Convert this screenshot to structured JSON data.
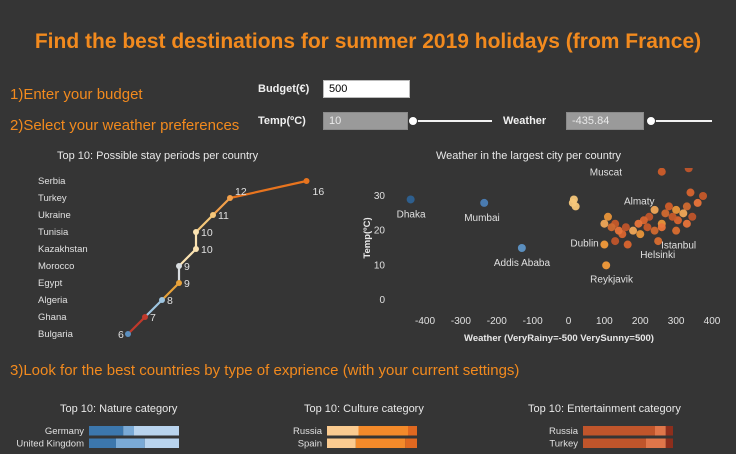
{
  "title": "Find the best destinations for summer 2019 holidays (from France)",
  "steps": {
    "budget": "1)Enter your budget",
    "weather": "2)Select your weather preferences",
    "category": "3)Look for the best countries by type of exprience (with your current settings)"
  },
  "controls": {
    "budget_label": "Budget(€)",
    "budget_value": "500",
    "temp_label": "Temp(ºC)",
    "temp_value": "10",
    "temp_fraction": 0.0,
    "weather_label": "Weather",
    "weather_value": "-435.84",
    "weather_fraction": 0.0
  },
  "chart_data": [
    {
      "type": "line",
      "title": "Top 10: Possible stay periods per country",
      "categories": [
        "Serbia",
        "Turkey",
        "Ukraine",
        "Tunisia",
        "Kazakhstan",
        "Morocco",
        "Egypt",
        "Algeria",
        "Ghana",
        "Bulgaria"
      ],
      "values": [
        16,
        12,
        11,
        10,
        10,
        9,
        9,
        8,
        7,
        6
      ],
      "value_labels": [
        "16",
        "12",
        "11",
        "10",
        "10",
        "9",
        "9",
        "8",
        "7",
        "6"
      ],
      "colors": [
        "#e8741e",
        "#f2a04a",
        "#f5c77a",
        "#fbe3b2",
        "#fbe3b2",
        "#d9dde0",
        "#e8a23a",
        "#9ec5e0",
        "#c0392b",
        "#5b8fbf"
      ]
    },
    {
      "type": "scatter",
      "title": "Weather in the largest city per country",
      "xlabel": "Weather (VeryRainy=-500  VerySunny=500)",
      "ylabel": "Temp(ºC)",
      "xlim": [
        -450,
        400
      ],
      "ylim": [
        -3,
        35
      ],
      "xticks": [
        "-400",
        "-300",
        "-200",
        "-100",
        "0",
        "100",
        "200",
        "300",
        "400"
      ],
      "yticks": [
        "30",
        "20",
        "10",
        "0"
      ],
      "labelled_points": [
        {
          "label": "Dhaka",
          "x": -440,
          "y": 29,
          "color": "#2e5f8e"
        },
        {
          "label": "Mumbai",
          "x": -235,
          "y": 28,
          "color": "#4a7bb0"
        },
        {
          "label": "Addis Ababa",
          "x": -130,
          "y": 15,
          "color": "#5b8fbf"
        },
        {
          "label": "Muscat",
          "x": 260,
          "y": 37,
          "color": "#c65a2a"
        },
        {
          "label": "Almaty",
          "x": 280,
          "y": 27,
          "color": "#c65a2a"
        },
        {
          "label": "Istanbul",
          "x": 300,
          "y": 20,
          "color": "#d06a30"
        },
        {
          "label": "Helsinki",
          "x": 250,
          "y": 17,
          "color": "#d06a30"
        },
        {
          "label": "Dublin",
          "x": 100,
          "y": 16,
          "color": "#e8953a"
        },
        {
          "label": "Reykjavik",
          "x": 105,
          "y": 10,
          "color": "#e8953a"
        }
      ],
      "points": [
        {
          "x": 335,
          "y": 38
        },
        {
          "x": 340,
          "y": 31
        },
        {
          "x": 360,
          "y": 28
        },
        {
          "x": 375,
          "y": 30
        },
        {
          "x": 330,
          "y": 27
        },
        {
          "x": 300,
          "y": 26
        },
        {
          "x": 320,
          "y": 25
        },
        {
          "x": 345,
          "y": 24
        },
        {
          "x": 305,
          "y": 23
        },
        {
          "x": 330,
          "y": 22
        },
        {
          "x": 290,
          "y": 24
        },
        {
          "x": 270,
          "y": 25
        },
        {
          "x": 260,
          "y": 22
        },
        {
          "x": 240,
          "y": 26
        },
        {
          "x": 225,
          "y": 24
        },
        {
          "x": 210,
          "y": 23
        },
        {
          "x": 195,
          "y": 22
        },
        {
          "x": 220,
          "y": 21
        },
        {
          "x": 240,
          "y": 20
        },
        {
          "x": 200,
          "y": 19
        },
        {
          "x": 180,
          "y": 20
        },
        {
          "x": 160,
          "y": 21
        },
        {
          "x": 150,
          "y": 19
        },
        {
          "x": 140,
          "y": 20
        },
        {
          "x": 130,
          "y": 22
        },
        {
          "x": 120,
          "y": 21
        },
        {
          "x": 110,
          "y": 24
        },
        {
          "x": 100,
          "y": 22
        },
        {
          "x": 130,
          "y": 17
        },
        {
          "x": 165,
          "y": 16
        },
        {
          "x": 260,
          "y": 21
        },
        {
          "x": 15,
          "y": 29
        },
        {
          "x": 20,
          "y": 27
        },
        {
          "x": 12,
          "y": 28
        }
      ]
    },
    {
      "type": "bar",
      "title": "Top 10: Nature category",
      "categories": [
        "Germany",
        "United Kingdom"
      ],
      "series": [
        {
          "name": "s1",
          "color": "#3c77ad",
          "values": [
            38,
            30
          ]
        },
        {
          "name": "s2",
          "color": "#7aaad6",
          "values": [
            12,
            32
          ]
        },
        {
          "name": "s3",
          "color": "#b9d4ee",
          "values": [
            50,
            38
          ]
        }
      ]
    },
    {
      "type": "bar",
      "title": "Top 10: Culture category",
      "categories": [
        "Russia",
        "Spain"
      ],
      "series": [
        {
          "name": "s1",
          "color": "#fbcb90",
          "values": [
            35,
            32
          ]
        },
        {
          "name": "s2",
          "color": "#f48a2a",
          "values": [
            55,
            55
          ]
        },
        {
          "name": "s3",
          "color": "#e06820",
          "values": [
            10,
            13
          ]
        }
      ]
    },
    {
      "type": "bar",
      "title": "Top 10: Entertainment category",
      "categories": [
        "Russia",
        "Turkey"
      ],
      "series": [
        {
          "name": "s1",
          "color": "#c0552b",
          "values": [
            80,
            70
          ]
        },
        {
          "name": "s2",
          "color": "#e0764a",
          "values": [
            12,
            22
          ]
        },
        {
          "name": "s3",
          "color": "#8e2e1c",
          "values": [
            8,
            8
          ]
        }
      ]
    }
  ]
}
